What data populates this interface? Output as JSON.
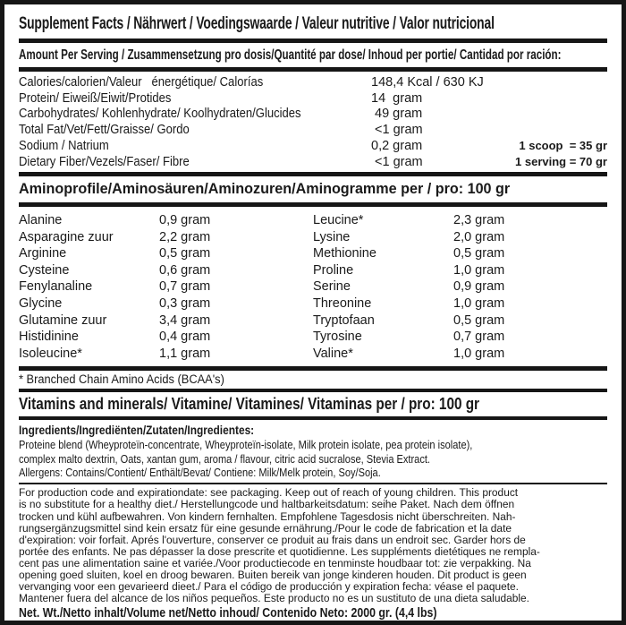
{
  "colors": {
    "ink": "#1a1a1a",
    "background": "#ffffff"
  },
  "label": {
    "title": "Supplement Facts / Nährwert / Voedingswaarde / Valeur nutritive / Valor nutricional",
    "amount_per_serving": "Amount Per Serving / Zusammensetzung pro dosis/Quantité par dose/ Inhoud per portie/ Cantidad por ración:",
    "nutrients": [
      {
        "label": "Calories/calorien/Valeur   énergétique/ Calorías",
        "value": "148,4 Kcal / 630 KJ",
        "note": ""
      },
      {
        "label": "Protein/ Eiweiß/Eiwit/Protides",
        "value": "14  gram",
        "note": ""
      },
      {
        "label": "Carbohydrates/ Kohlenhydrate/ Koolhydraten/Glucides",
        "value": " 49 gram",
        "note": ""
      },
      {
        "label": "Total Fat/Vet/Fett/Graisse/ Gordo",
        "value": " <1 gram",
        "note": ""
      },
      {
        "label": "Sodium / Natrium",
        "value": "0,2 gram",
        "note": "1 scoop  = 35 gr"
      },
      {
        "label": "Dietary Fiber/Vezels/Faser/ Fibre",
        "value": " <1 gram",
        "note": "1 serving = 70 gr"
      }
    ],
    "amino_header": "Aminoprofile/Aminosäuren/Aminozuren/Aminogramme per / pro: 100 gr",
    "amino_rows": [
      {
        "n1": "Alanine",
        "v1": "0,9 gram",
        "n2": "Leucine*",
        "v2": "2,3 gram"
      },
      {
        "n1": "Asparagine zuur",
        "v1": "2,2 gram",
        "n2": "Lysine",
        "v2": "2,0 gram"
      },
      {
        "n1": "Arginine",
        "v1": "0,5 gram",
        "n2": "Methionine",
        "v2": "0,5 gram"
      },
      {
        "n1": "Cysteine",
        "v1": "0,6 gram",
        "n2": "Proline",
        "v2": "1,0 gram"
      },
      {
        "n1": "Fenylanaline",
        "v1": "0,7 gram",
        "n2": "Serine",
        "v2": "0,9 gram"
      },
      {
        "n1": "Glycine",
        "v1": "0,3 gram",
        "n2": "Threonine",
        "v2": "1,0 gram"
      },
      {
        "n1": "Glutamine zuur",
        "v1": "3,4 gram",
        "n2": "Tryptofaan",
        "v2": "0,5 gram"
      },
      {
        "n1": "Histidinine",
        "v1": "0,4 gram",
        "n2": "Tyrosine",
        "v2": "0,7 gram"
      },
      {
        "n1": "Isoleucine*",
        "v1": "1,1 gram",
        "n2": "Valine*",
        "v2": "1,0 gram"
      }
    ],
    "bcaa_note": "* Branched Chain Amino Acids (BCAA's)",
    "vitamins_header": "Vitamins and minerals/ Vitamine/ Vitamines/ Vitaminas per / pro: 100 gr",
    "ingredients_label": "Ingredients/Ingrediënten/Zutaten/Ingredientes:",
    "ingredients_lines": [
      "Proteine blend (Wheyproteïn-concentrate, Wheyproteïn-isolate, Milk protein isolate, pea protein isolate),",
      "complex malto dextrin, Oats, xantan gum, aroma / flavour, citric acid sucralose, Stevia Extract.",
      "Allergens: Contains/Contient/ Enthält/Bevat/ Contiene: Milk/Melk protein, Soy/Soja."
    ],
    "legal_lines": [
      "For production code and expirationdate: see packaging. Keep out of reach of young children. This product",
      "is no substitute for a healthy diet./ Herstellungcode und haltbarkeitsdatum: seihe Paket. Nach dem öffnen",
      "trocken und kühl aufbewahren. Von kindern fernhalten. Empfohlene Tagesdosis nicht überschreiten. Nah-",
      "rungsergänzugsmittel sind kein ersatz für eine gesunde ernährung./Pour le code de fabrication et la date",
      "d'expiration: voir forfait. Aprés l'ouverture, conserver ce produit au frais dans un endroit sec. Garder hors de",
      "portée des enfants. Ne pas dépasser la dose prescrite et quotidienne. Les suppléments dietétiques ne rempla-",
      "cent pas une alimentation saine et variée./Voor productiecode en tenminste houdbaar tot: zie verpakking. Na",
      "opening goed sluiten, koel en droog bewaren. Buiten bereik van jonge kinderen houden. Dit product is geen",
      "vervanging voor een gevarieerd dieet./ Para el código de producción y expiration fecha: véase el paquete.",
      "Mantener fuera del alcance de los niños pequeños. Este producto no es un sustituto de una dieta saludable."
    ],
    "net_weight": "Net. Wt./Netto inhalt/Volume net/Netto inhoud/ Contenido Neto: 2000 gr. (4,4 lbs)"
  }
}
